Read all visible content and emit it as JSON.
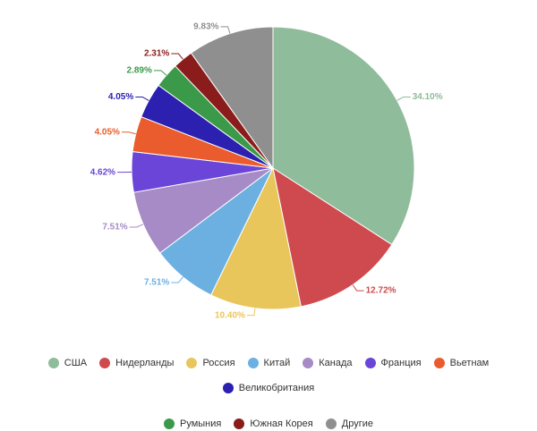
{
  "chart_data": {
    "type": "pie",
    "categories": [
      "США",
      "Нидерланды",
      "Россия",
      "Китай",
      "Канада",
      "Франция",
      "Вьетнам",
      "Великобритания",
      "Румыния",
      "Южная Корея",
      "Другие"
    ],
    "values": [
      34.1,
      12.72,
      10.4,
      7.51,
      7.51,
      4.62,
      4.05,
      4.05,
      2.89,
      2.31,
      9.83
    ],
    "value_labels": [
      "34.10%",
      "12.72%",
      "10.40%",
      "7.51%",
      "7.51%",
      "4.62%",
      "4.05%",
      "4.05%",
      "2.89%",
      "2.31%",
      "9.83%"
    ],
    "colors": [
      "#8fbc9b",
      "#cf4a4e",
      "#e8c65b",
      "#6cb0e2",
      "#a68bc6",
      "#6a45d8",
      "#ea5c2d",
      "#2b20b0",
      "#3b9a49",
      "#8a1c1c",
      "#8f8f8f"
    ],
    "legend": "bottom"
  }
}
